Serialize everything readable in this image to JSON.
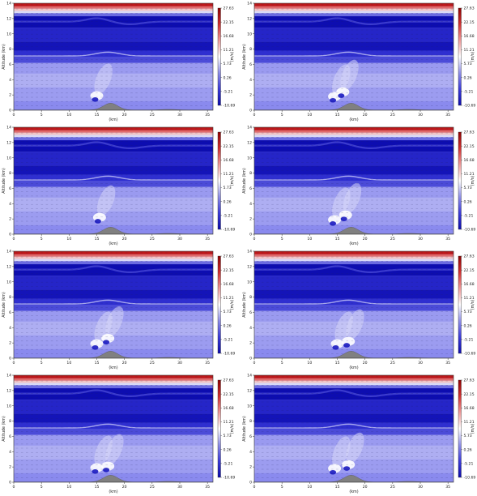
{
  "chart_data": [
    {
      "type": "heatmap",
      "panel": "row1-left",
      "xlabel": "(km)",
      "ylabel": "Altitude (km)",
      "colorbar_label": "(m/s)",
      "xlim": [
        0,
        36
      ],
      "ylim": [
        0,
        14
      ],
      "xticks": [
        "0",
        "5",
        "10",
        "15",
        "20",
        "25",
        "30",
        "35"
      ],
      "yticks": [
        "0",
        "2",
        "4",
        "6",
        "8",
        "10",
        "12",
        "14"
      ],
      "colorbar_ticks": [
        "27.63",
        "22.15",
        "16.68",
        "11.21",
        "5.73",
        "0.26",
        "-5.21",
        "-10.69"
      ],
      "colorbar_range": [
        -10.69,
        27.63
      ],
      "colormap": [
        "#0b0ba8",
        "#3a3ad8",
        "#8f8fe8",
        "#ffffff",
        "#f09a9a",
        "#d03030",
        "#8c0000"
      ],
      "terrain": {
        "color": "#808080",
        "peak_km": 17.5,
        "peak_alt": 0.9
      },
      "updrafts": [
        {
          "x": 15,
          "y": 1.9
        }
      ]
    },
    {
      "type": "heatmap",
      "panel": "row1-right",
      "xlabel": "(km)",
      "ylabel": "Altitude (km)",
      "colorbar_label": "(m/s)",
      "xlim": [
        0,
        36
      ],
      "ylim": [
        0,
        14
      ],
      "xticks": [
        "0",
        "5",
        "10",
        "15",
        "20",
        "25",
        "30",
        "35"
      ],
      "yticks": [
        "0",
        "2",
        "4",
        "6",
        "8",
        "10",
        "12",
        "14"
      ],
      "colorbar_ticks": [
        "27.63",
        "22.15",
        "16.68",
        "11.21",
        "5.73",
        "0.26",
        "-5.21",
        "-10.69"
      ],
      "colorbar_range": [
        -10.69,
        27.63
      ],
      "colormap": [
        "#0b0ba8",
        "#3a3ad8",
        "#8f8fe8",
        "#ffffff",
        "#f09a9a",
        "#d03030",
        "#8c0000"
      ],
      "terrain": {
        "color": "#808080",
        "peak_km": 17.5,
        "peak_alt": 0.9
      },
      "updrafts": [
        {
          "x": 14.5,
          "y": 1.8
        },
        {
          "x": 16,
          "y": 2.4
        }
      ]
    },
    {
      "type": "heatmap",
      "panel": "row2-left",
      "xlabel": "(km)",
      "ylabel": "Altitude (km)",
      "colorbar_label": "(m/s)",
      "xlim": [
        0,
        36
      ],
      "ylim": [
        0,
        14
      ],
      "xticks": [
        "0",
        "5",
        "10",
        "15",
        "20",
        "25",
        "30",
        "35"
      ],
      "yticks": [
        "0",
        "2",
        "4",
        "6",
        "8",
        "10",
        "12",
        "14"
      ],
      "colorbar_ticks": [
        "27.63",
        "22.15",
        "16.68",
        "11.21",
        "5.73",
        "0.26",
        "-5.21",
        "-10.69"
      ],
      "colorbar_range": [
        -10.69,
        27.63
      ],
      "colormap": [
        "#0b0ba8",
        "#3a3ad8",
        "#8f8fe8",
        "#ffffff",
        "#f09a9a",
        "#d03030",
        "#8c0000"
      ],
      "terrain": {
        "color": "#808080",
        "peak_km": 17.5,
        "peak_alt": 0.9
      },
      "updrafts": [
        {
          "x": 15.5,
          "y": 2.2
        }
      ]
    },
    {
      "type": "heatmap",
      "panel": "row2-right",
      "xlabel": "(km)",
      "ylabel": "Altitude (km)",
      "colorbar_label": "(m/s)",
      "xlim": [
        0,
        36
      ],
      "ylim": [
        0,
        14
      ],
      "xticks": [
        "0",
        "5",
        "10",
        "15",
        "20",
        "25",
        "30",
        "35"
      ],
      "yticks": [
        "0",
        "2",
        "4",
        "6",
        "8",
        "10",
        "12",
        "14"
      ],
      "colorbar_ticks": [
        "27.63",
        "22.15",
        "16.68",
        "11.21",
        "5.73",
        "0.26",
        "-5.21",
        "-10.69"
      ],
      "colorbar_range": [
        -10.69,
        27.63
      ],
      "colormap": [
        "#0b0ba8",
        "#3a3ad8",
        "#8f8fe8",
        "#ffffff",
        "#f09a9a",
        "#d03030",
        "#8c0000"
      ],
      "terrain": {
        "color": "#808080",
        "peak_km": 17.5,
        "peak_alt": 0.9
      },
      "updrafts": [
        {
          "x": 14.5,
          "y": 1.9
        },
        {
          "x": 16.5,
          "y": 2.5
        }
      ]
    },
    {
      "type": "heatmap",
      "panel": "row3-left",
      "xlabel": "(km)",
      "ylabel": "Altitude (km)",
      "colorbar_label": "(m/s)",
      "xlim": [
        0,
        36
      ],
      "ylim": [
        0,
        14
      ],
      "xticks": [
        "0",
        "5",
        "10",
        "15",
        "20",
        "25",
        "30",
        "35"
      ],
      "yticks": [
        "0",
        "2",
        "4",
        "6",
        "8",
        "10",
        "12",
        "14"
      ],
      "colorbar_ticks": [
        "27.63",
        "22.15",
        "16.68",
        "11.21",
        "5.73",
        "0.26",
        "-5.21",
        "-10.69"
      ],
      "colorbar_range": [
        -10.69,
        27.63
      ],
      "colormap": [
        "#0b0ba8",
        "#3a3ad8",
        "#8f8fe8",
        "#ffffff",
        "#f09a9a",
        "#d03030",
        "#8c0000"
      ],
      "terrain": {
        "color": "#808080",
        "peak_km": 17.5,
        "peak_alt": 0.9
      },
      "updrafts": [
        {
          "x": 15,
          "y": 1.9
        },
        {
          "x": 17,
          "y": 2.6
        }
      ]
    },
    {
      "type": "heatmap",
      "panel": "row3-right",
      "xlabel": "(km)",
      "ylabel": "Altitude (km)",
      "colorbar_label": "(m/s)",
      "xlim": [
        0,
        36
      ],
      "ylim": [
        0,
        14
      ],
      "xticks": [
        "0",
        "5",
        "10",
        "15",
        "20",
        "25",
        "30",
        "35"
      ],
      "yticks": [
        "0",
        "2",
        "4",
        "6",
        "8",
        "10",
        "12",
        "14"
      ],
      "colorbar_ticks": [
        "27.63",
        "22.15",
        "16.68",
        "11.21",
        "5.73",
        "0.26",
        "-5.21",
        "-10.69"
      ],
      "colorbar_range": [
        -10.69,
        27.63
      ],
      "colormap": [
        "#0b0ba8",
        "#3a3ad8",
        "#8f8fe8",
        "#ffffff",
        "#f09a9a",
        "#d03030",
        "#8c0000"
      ],
      "terrain": {
        "color": "#808080",
        "peak_km": 17.5,
        "peak_alt": 0.9
      },
      "updrafts": [
        {
          "x": 15,
          "y": 1.9
        },
        {
          "x": 17,
          "y": 2.2
        }
      ]
    },
    {
      "type": "heatmap",
      "panel": "row4-left",
      "xlabel": "(km)",
      "ylabel": "Altitude (km)",
      "colorbar_label": "(m/s)",
      "xlim": [
        0,
        36
      ],
      "ylim": [
        0,
        14
      ],
      "xticks": [
        "0",
        "5",
        "10",
        "15",
        "20",
        "25",
        "30",
        "35"
      ],
      "yticks": [
        "0",
        "2",
        "4",
        "6",
        "8",
        "10",
        "12",
        "14"
      ],
      "colorbar_ticks": [
        "27.63",
        "22.15",
        "16.68",
        "11.21",
        "5.73",
        "0.26",
        "-5.21",
        "-10.69"
      ],
      "colorbar_range": [
        -10.69,
        27.63
      ],
      "colormap": [
        "#0b0ba8",
        "#3a3ad8",
        "#8f8fe8",
        "#ffffff",
        "#f09a9a",
        "#d03030",
        "#8c0000"
      ],
      "terrain": {
        "color": "#808080",
        "peak_km": 17.5,
        "peak_alt": 0.9
      },
      "updrafts": [
        {
          "x": 15,
          "y": 1.9
        },
        {
          "x": 17,
          "y": 2.1
        }
      ]
    },
    {
      "type": "heatmap",
      "panel": "row4-right",
      "xlabel": "(km)",
      "ylabel": "Altitude (km)",
      "colorbar_label": "(m/s)",
      "xlim": [
        0,
        36
      ],
      "ylim": [
        0,
        14
      ],
      "xticks": [
        "0",
        "5",
        "10",
        "15",
        "20",
        "25",
        "30",
        "35"
      ],
      "yticks": [
        "0",
        "2",
        "4",
        "6",
        "8",
        "10",
        "12",
        "14"
      ],
      "colorbar_ticks": [
        "27.63",
        "22.15",
        "16.68",
        "11.21",
        "5.73",
        "0.26",
        "-5.21",
        "-10.69"
      ],
      "colorbar_range": [
        -10.69,
        27.63
      ],
      "colormap": [
        "#0b0ba8",
        "#3a3ad8",
        "#8f8fe8",
        "#ffffff",
        "#f09a9a",
        "#d03030",
        "#8c0000"
      ],
      "terrain": {
        "color": "#808080",
        "peak_km": 17.5,
        "peak_alt": 0.9
      },
      "updrafts": [
        {
          "x": 14.5,
          "y": 1.8
        },
        {
          "x": 17,
          "y": 2.3
        }
      ]
    }
  ]
}
